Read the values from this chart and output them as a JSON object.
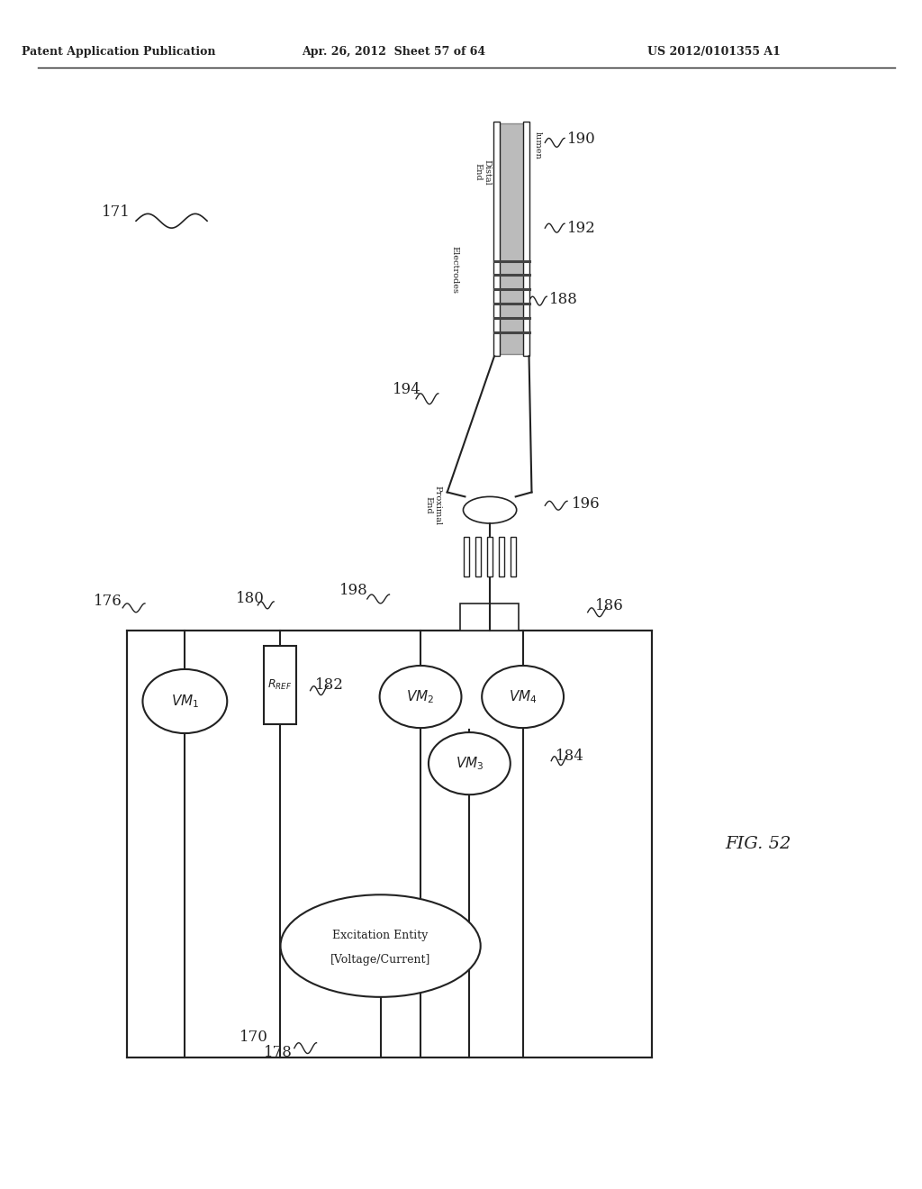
{
  "title_left": "Patent Application Publication",
  "title_mid": "Apr. 26, 2012  Sheet 57 of 64",
  "title_right": "US 2012/0101355 A1",
  "fig_label": "FIG. 52",
  "bg_color": "#ffffff",
  "line_color": "#222222"
}
